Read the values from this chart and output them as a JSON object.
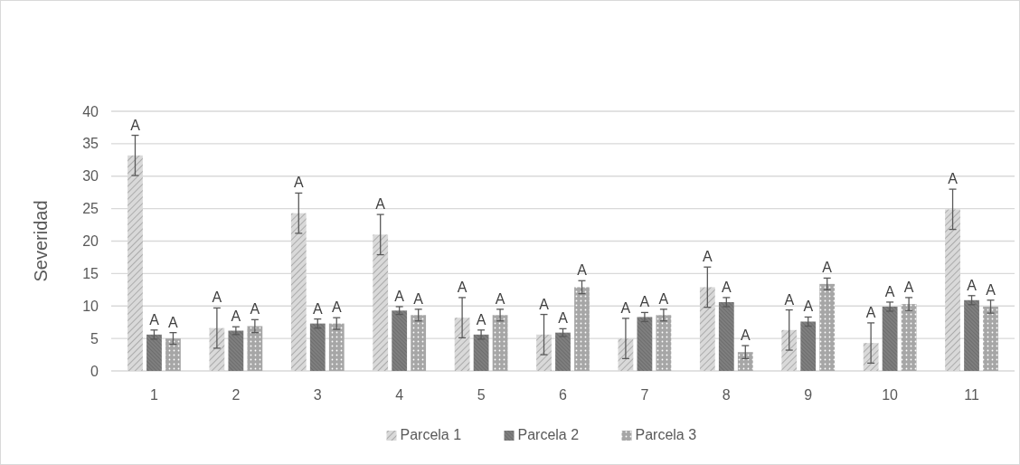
{
  "chart_data": {
    "type": "bar",
    "ylabel": "Severidad",
    "categories": [
      "1",
      "2",
      "3",
      "4",
      "5",
      "6",
      "7",
      "8",
      "9",
      "10",
      "11"
    ],
    "ylim": [
      0,
      40
    ],
    "yticks": [
      0,
      5,
      10,
      15,
      20,
      25,
      30,
      35,
      40
    ],
    "grid": "y",
    "legend": "bottom",
    "series": [
      {
        "name": "Parcela 1",
        "color": "#d9d9d9",
        "values": [
          33.2,
          6.6,
          24.3,
          21.0,
          8.2,
          5.6,
          5.0,
          12.9,
          6.3,
          4.3,
          24.9
        ],
        "errors": [
          3.1,
          3.1,
          3.1,
          3.1,
          3.1,
          3.1,
          3.1,
          3.1,
          3.1,
          3.1,
          3.1
        ],
        "value_labels": [
          "A",
          "A",
          "A",
          "A",
          "A",
          "A",
          "A",
          "A",
          "A",
          "A",
          "A"
        ]
      },
      {
        "name": "Parcela 2",
        "color": "#7f7f7f",
        "values": [
          5.6,
          6.2,
          7.3,
          9.3,
          5.6,
          5.9,
          8.3,
          10.6,
          7.6,
          9.9,
          10.9
        ],
        "errors": [
          0.7,
          0.6,
          0.7,
          0.6,
          0.7,
          0.6,
          0.7,
          0.7,
          0.7,
          0.7,
          0.7
        ],
        "value_labels": [
          "A",
          "A",
          "A",
          "A",
          "A",
          "A",
          "A",
          "A",
          "A",
          "A",
          "A"
        ]
      },
      {
        "name": "Parcela 3",
        "color": "#a6a6a6",
        "values": [
          5.0,
          6.9,
          7.3,
          8.6,
          8.6,
          12.9,
          8.6,
          2.9,
          13.4,
          10.3,
          9.9
        ],
        "errors": [
          0.9,
          1.0,
          0.9,
          0.9,
          0.9,
          1.0,
          0.9,
          1.0,
          0.9,
          1.0,
          1.0
        ],
        "value_labels": [
          "A",
          "A",
          "A",
          "A",
          "A",
          "A",
          "A",
          "A",
          "A",
          "A",
          "A"
        ]
      }
    ]
  }
}
